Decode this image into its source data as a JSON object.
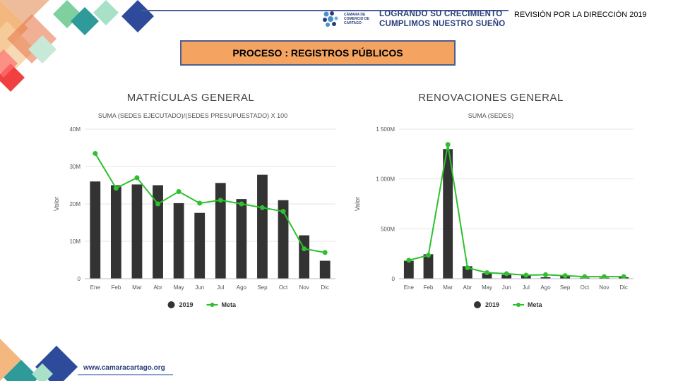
{
  "header": {
    "logo_name": "CÁMARA DE COMERCIO DE CARTAGO",
    "slogan_line1": "LOGRANDO SU CRECIMIENTO",
    "slogan_line2": "CUMPLIMOS NUESTRO SUEÑO",
    "review_label": "REVISIÓN POR LA DIRECCIÓN 2019"
  },
  "process_label": "PROCESO : REGISTROS PÚBLICOS",
  "footer": {
    "website": "www.camaracartago.org"
  },
  "colors": {
    "bar": "#333333",
    "line": "#2ec02e",
    "box": "#f4a460",
    "brand": "#2a3f7a"
  },
  "chart_data": [
    {
      "type": "bar",
      "title": "MATRÍCULAS GENERAL",
      "subtitle": "SUMA (SEDES EJECUTADO)/(SEDES PRESUPUESTADO) X 100",
      "ylabel": "Valor",
      "categories": [
        "Ene",
        "Feb",
        "Mar",
        "Abr",
        "May",
        "Jun",
        "Jul",
        "Ago",
        "Sep",
        "Oct",
        "Nov",
        "Dic"
      ],
      "ylim": [
        0,
        40
      ],
      "yticks": [
        0,
        10,
        20,
        30,
        40
      ],
      "ytick_labels": [
        "0",
        "10M",
        "20M",
        "30M",
        "40M"
      ],
      "series": [
        {
          "name": "2019",
          "type": "bar",
          "values": [
            26,
            25,
            25.2,
            25,
            20.2,
            17.6,
            25.6,
            21.3,
            27.8,
            21,
            11.6,
            4.8
          ]
        },
        {
          "name": "Meta",
          "type": "line",
          "values": [
            33.5,
            24.2,
            27,
            20,
            23.3,
            20.2,
            21,
            20,
            19,
            18,
            8,
            7
          ]
        }
      ],
      "legend": "bottom"
    },
    {
      "type": "bar",
      "title": "RENOVACIONES GENERAL",
      "subtitle": "SUMA (SEDES)",
      "ylabel": "Valor",
      "categories": [
        "Ene",
        "Feb",
        "Mar",
        "Abr",
        "May",
        "Jun",
        "Jul",
        "Ago",
        "Sep",
        "Oct",
        "Nov",
        "Dic"
      ],
      "ylim": [
        0,
        1500
      ],
      "yticks": [
        0,
        500,
        1000,
        1500
      ],
      "ytick_labels": [
        "0",
        "500M",
        "1 000M",
        "1 500M"
      ],
      "series": [
        {
          "name": "2019",
          "type": "bar",
          "values": [
            180,
            245,
            1300,
            125,
            55,
            40,
            35,
            15,
            30,
            10,
            10,
            15
          ]
        },
        {
          "name": "Meta",
          "type": "line",
          "values": [
            185,
            235,
            1345,
            110,
            60,
            50,
            35,
            40,
            30,
            20,
            20,
            20
          ]
        }
      ],
      "legend": "bottom"
    }
  ]
}
